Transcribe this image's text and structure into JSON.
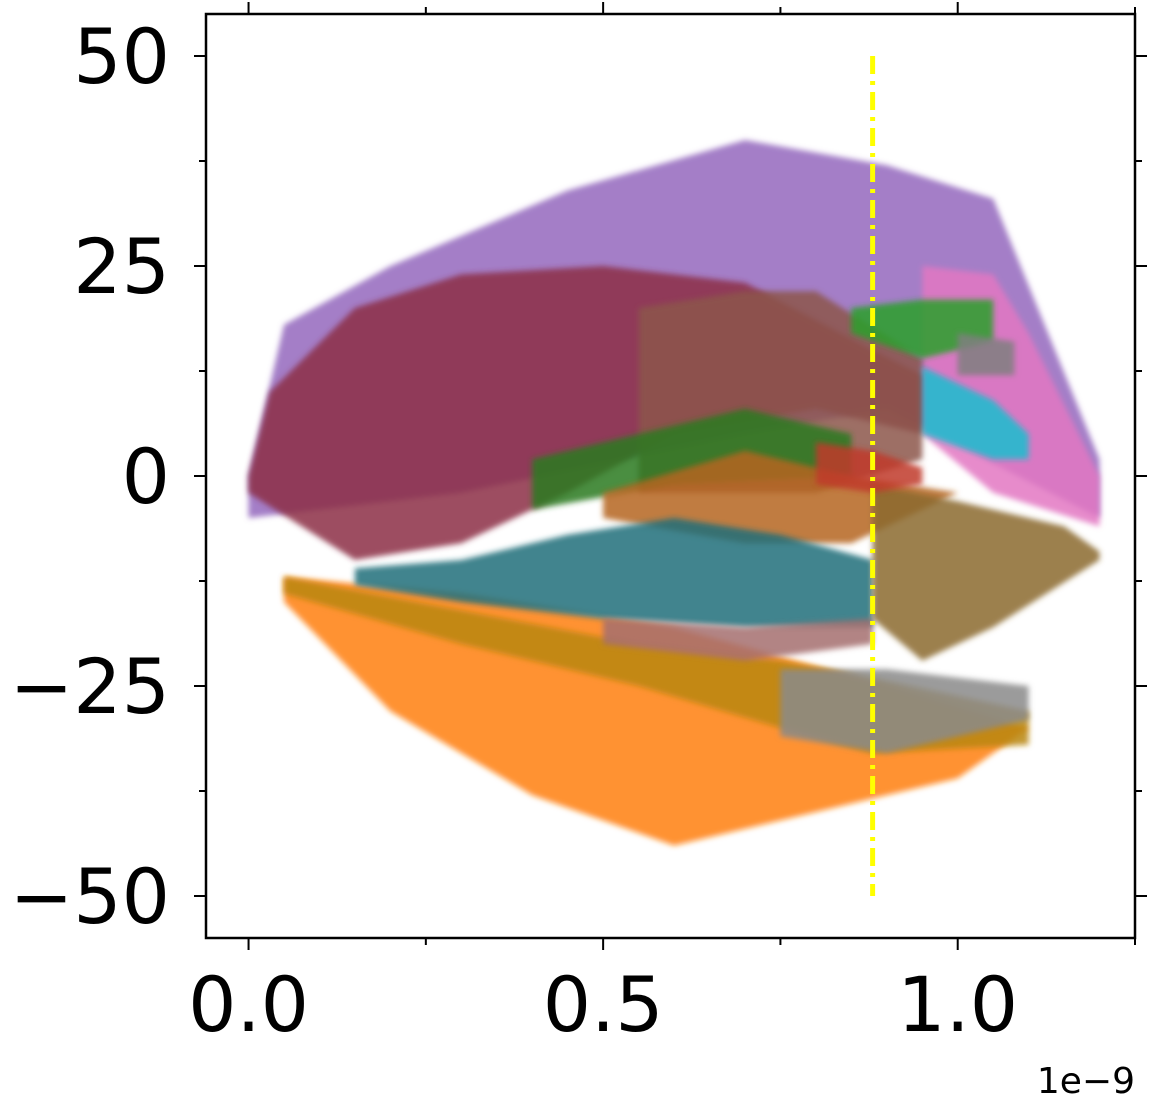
{
  "chart_data": {
    "type": "area",
    "title": "",
    "xlabel": "",
    "ylabel": "",
    "x_offset_label": "1e−9",
    "xlim": [
      -0.06,
      1.25
    ],
    "ylim": [
      -55,
      55
    ],
    "x_ticks": [
      {
        "value": 0.0,
        "label": "0.0"
      },
      {
        "value": 0.5,
        "label": "0.5"
      },
      {
        "value": 1.0,
        "label": "1.0"
      }
    ],
    "x_minor_ticks": [
      0.25,
      0.75,
      1.25
    ],
    "y_ticks": [
      {
        "value": 50,
        "label": "50"
      },
      {
        "value": 25,
        "label": "25"
      },
      {
        "value": 0,
        "label": "0"
      },
      {
        "value": -25,
        "label": "−25"
      },
      {
        "value": -50,
        "label": "−50"
      }
    ],
    "y_minor_ticks": [
      37.5,
      12.5,
      -12.5,
      -37.5
    ],
    "grid": false,
    "legend": "none",
    "vline": {
      "x": 0.88,
      "y_range": [
        -50,
        50
      ],
      "color": "#ffff00",
      "style": "dash-dot"
    },
    "series": [
      {
        "color": "#9467bd",
        "upper": [
          [
            0.0,
            0
          ],
          [
            0.05,
            18
          ],
          [
            0.2,
            25
          ],
          [
            0.45,
            34
          ],
          [
            0.7,
            40
          ],
          [
            0.9,
            37
          ],
          [
            1.05,
            33
          ],
          [
            1.2,
            2
          ]
        ],
        "lower": [
          [
            0.0,
            -5
          ],
          [
            0.3,
            -2
          ],
          [
            0.7,
            5
          ],
          [
            0.9,
            8
          ],
          [
            1.2,
            -5
          ]
        ]
      },
      {
        "color": "#e377c2",
        "upper": [
          [
            0.95,
            25
          ],
          [
            1.05,
            24
          ],
          [
            1.1,
            17
          ],
          [
            1.2,
            0
          ]
        ],
        "lower": [
          [
            0.95,
            5
          ],
          [
            1.05,
            -2
          ],
          [
            1.2,
            -6
          ]
        ]
      },
      {
        "color": "#ff7f0e",
        "upper": [
          [
            0.05,
            -12
          ],
          [
            0.3,
            -14
          ],
          [
            0.6,
            -18
          ],
          [
            0.9,
            -25
          ],
          [
            1.1,
            -30
          ]
        ],
        "lower": [
          [
            0.05,
            -15
          ],
          [
            0.2,
            -28
          ],
          [
            0.4,
            -38
          ],
          [
            0.6,
            -44
          ],
          [
            0.8,
            -40
          ],
          [
            1.0,
            -36
          ],
          [
            1.1,
            -30
          ]
        ]
      },
      {
        "color": "#8c2d47",
        "upper": [
          [
            0.0,
            0
          ],
          [
            0.03,
            10
          ],
          [
            0.15,
            20
          ],
          [
            0.3,
            24
          ],
          [
            0.5,
            25
          ],
          [
            0.7,
            23
          ],
          [
            0.88,
            15
          ],
          [
            0.95,
            12
          ]
        ],
        "lower": [
          [
            0.0,
            -2
          ],
          [
            0.15,
            -10
          ],
          [
            0.3,
            -8
          ],
          [
            0.45,
            -2
          ],
          [
            0.6,
            5
          ],
          [
            0.8,
            8
          ],
          [
            0.95,
            5
          ]
        ]
      },
      {
        "color": "#8c564b",
        "upper": [
          [
            0.55,
            20
          ],
          [
            0.7,
            22
          ],
          [
            0.8,
            22
          ],
          [
            0.95,
            14
          ]
        ],
        "lower": [
          [
            0.55,
            -2
          ],
          [
            0.8,
            -2
          ],
          [
            0.95,
            2
          ]
        ]
      },
      {
        "color": "#2ca02c",
        "upper": [
          [
            0.85,
            20
          ],
          [
            0.95,
            21
          ],
          [
            1.05,
            21
          ]
        ],
        "lower": [
          [
            0.85,
            17
          ],
          [
            0.95,
            14
          ],
          [
            1.05,
            16
          ]
        ]
      },
      {
        "color": "#7f7f7f",
        "upper": [
          [
            1.0,
            17
          ],
          [
            1.08,
            16
          ]
        ],
        "lower": [
          [
            1.0,
            12
          ],
          [
            1.08,
            12
          ]
        ]
      },
      {
        "color": "#17becf",
        "upper": [
          [
            0.95,
            13
          ],
          [
            1.05,
            9
          ],
          [
            1.1,
            5
          ]
        ],
        "lower": [
          [
            0.95,
            5
          ],
          [
            1.05,
            2
          ],
          [
            1.1,
            2
          ]
        ]
      },
      {
        "color": "#2b7a1f",
        "upper": [
          [
            0.4,
            2
          ],
          [
            0.55,
            5
          ],
          [
            0.7,
            8
          ],
          [
            0.85,
            5
          ]
        ],
        "lower": [
          [
            0.4,
            -4
          ],
          [
            0.6,
            -1
          ],
          [
            0.85,
            0
          ]
        ]
      },
      {
        "color": "#b5651d",
        "upper": [
          [
            0.5,
            -2
          ],
          [
            0.7,
            3
          ],
          [
            0.85,
            0
          ],
          [
            1.0,
            -2
          ]
        ],
        "lower": [
          [
            0.5,
            -5
          ],
          [
            0.7,
            -8
          ],
          [
            0.85,
            -8
          ]
        ]
      },
      {
        "color": "#1f6f7a",
        "upper": [
          [
            0.15,
            -11
          ],
          [
            0.3,
            -10
          ],
          [
            0.45,
            -7
          ],
          [
            0.6,
            -5
          ],
          [
            0.75,
            -7
          ],
          [
            0.88,
            -10
          ]
        ],
        "lower": [
          [
            0.15,
            -13
          ],
          [
            0.3,
            -15
          ],
          [
            0.5,
            -17
          ],
          [
            0.7,
            -18
          ],
          [
            0.88,
            -18
          ]
        ]
      },
      {
        "color": "#8b6a2e",
        "upper": [
          [
            0.88,
            -1
          ],
          [
            1.0,
            -3
          ],
          [
            1.15,
            -6
          ],
          [
            1.2,
            -9
          ]
        ],
        "lower": [
          [
            0.88,
            -17
          ],
          [
            0.95,
            -22
          ],
          [
            1.05,
            -18
          ],
          [
            1.2,
            -10
          ]
        ]
      },
      {
        "color": "#b8860b",
        "upper": [
          [
            0.05,
            -12
          ],
          [
            0.3,
            -16
          ],
          [
            0.55,
            -20
          ],
          [
            0.75,
            -22
          ],
          [
            0.88,
            -24
          ],
          [
            1.1,
            -28
          ]
        ],
        "lower": [
          [
            0.05,
            -14
          ],
          [
            0.3,
            -20
          ],
          [
            0.55,
            -25
          ],
          [
            0.75,
            -30
          ],
          [
            0.88,
            -33
          ],
          [
            1.1,
            -32
          ]
        ]
      },
      {
        "color": "#a56f6f",
        "upper": [
          [
            0.5,
            -17
          ],
          [
            0.7,
            -18
          ],
          [
            0.88,
            -17
          ]
        ],
        "lower": [
          [
            0.5,
            -20
          ],
          [
            0.7,
            -22
          ],
          [
            0.88,
            -20
          ]
        ]
      },
      {
        "color": "#8a8a8a",
        "upper": [
          [
            0.75,
            -23
          ],
          [
            0.9,
            -23
          ],
          [
            1.1,
            -25
          ]
        ],
        "lower": [
          [
            0.75,
            -31
          ],
          [
            0.9,
            -33
          ],
          [
            1.1,
            -29
          ]
        ]
      },
      {
        "color": "#c0392b",
        "upper": [
          [
            0.8,
            4
          ],
          [
            0.88,
            3
          ],
          [
            0.95,
            1
          ]
        ],
        "lower": [
          [
            0.8,
            -1
          ],
          [
            0.88,
            -2
          ],
          [
            0.95,
            -1
          ]
        ]
      }
    ]
  }
}
